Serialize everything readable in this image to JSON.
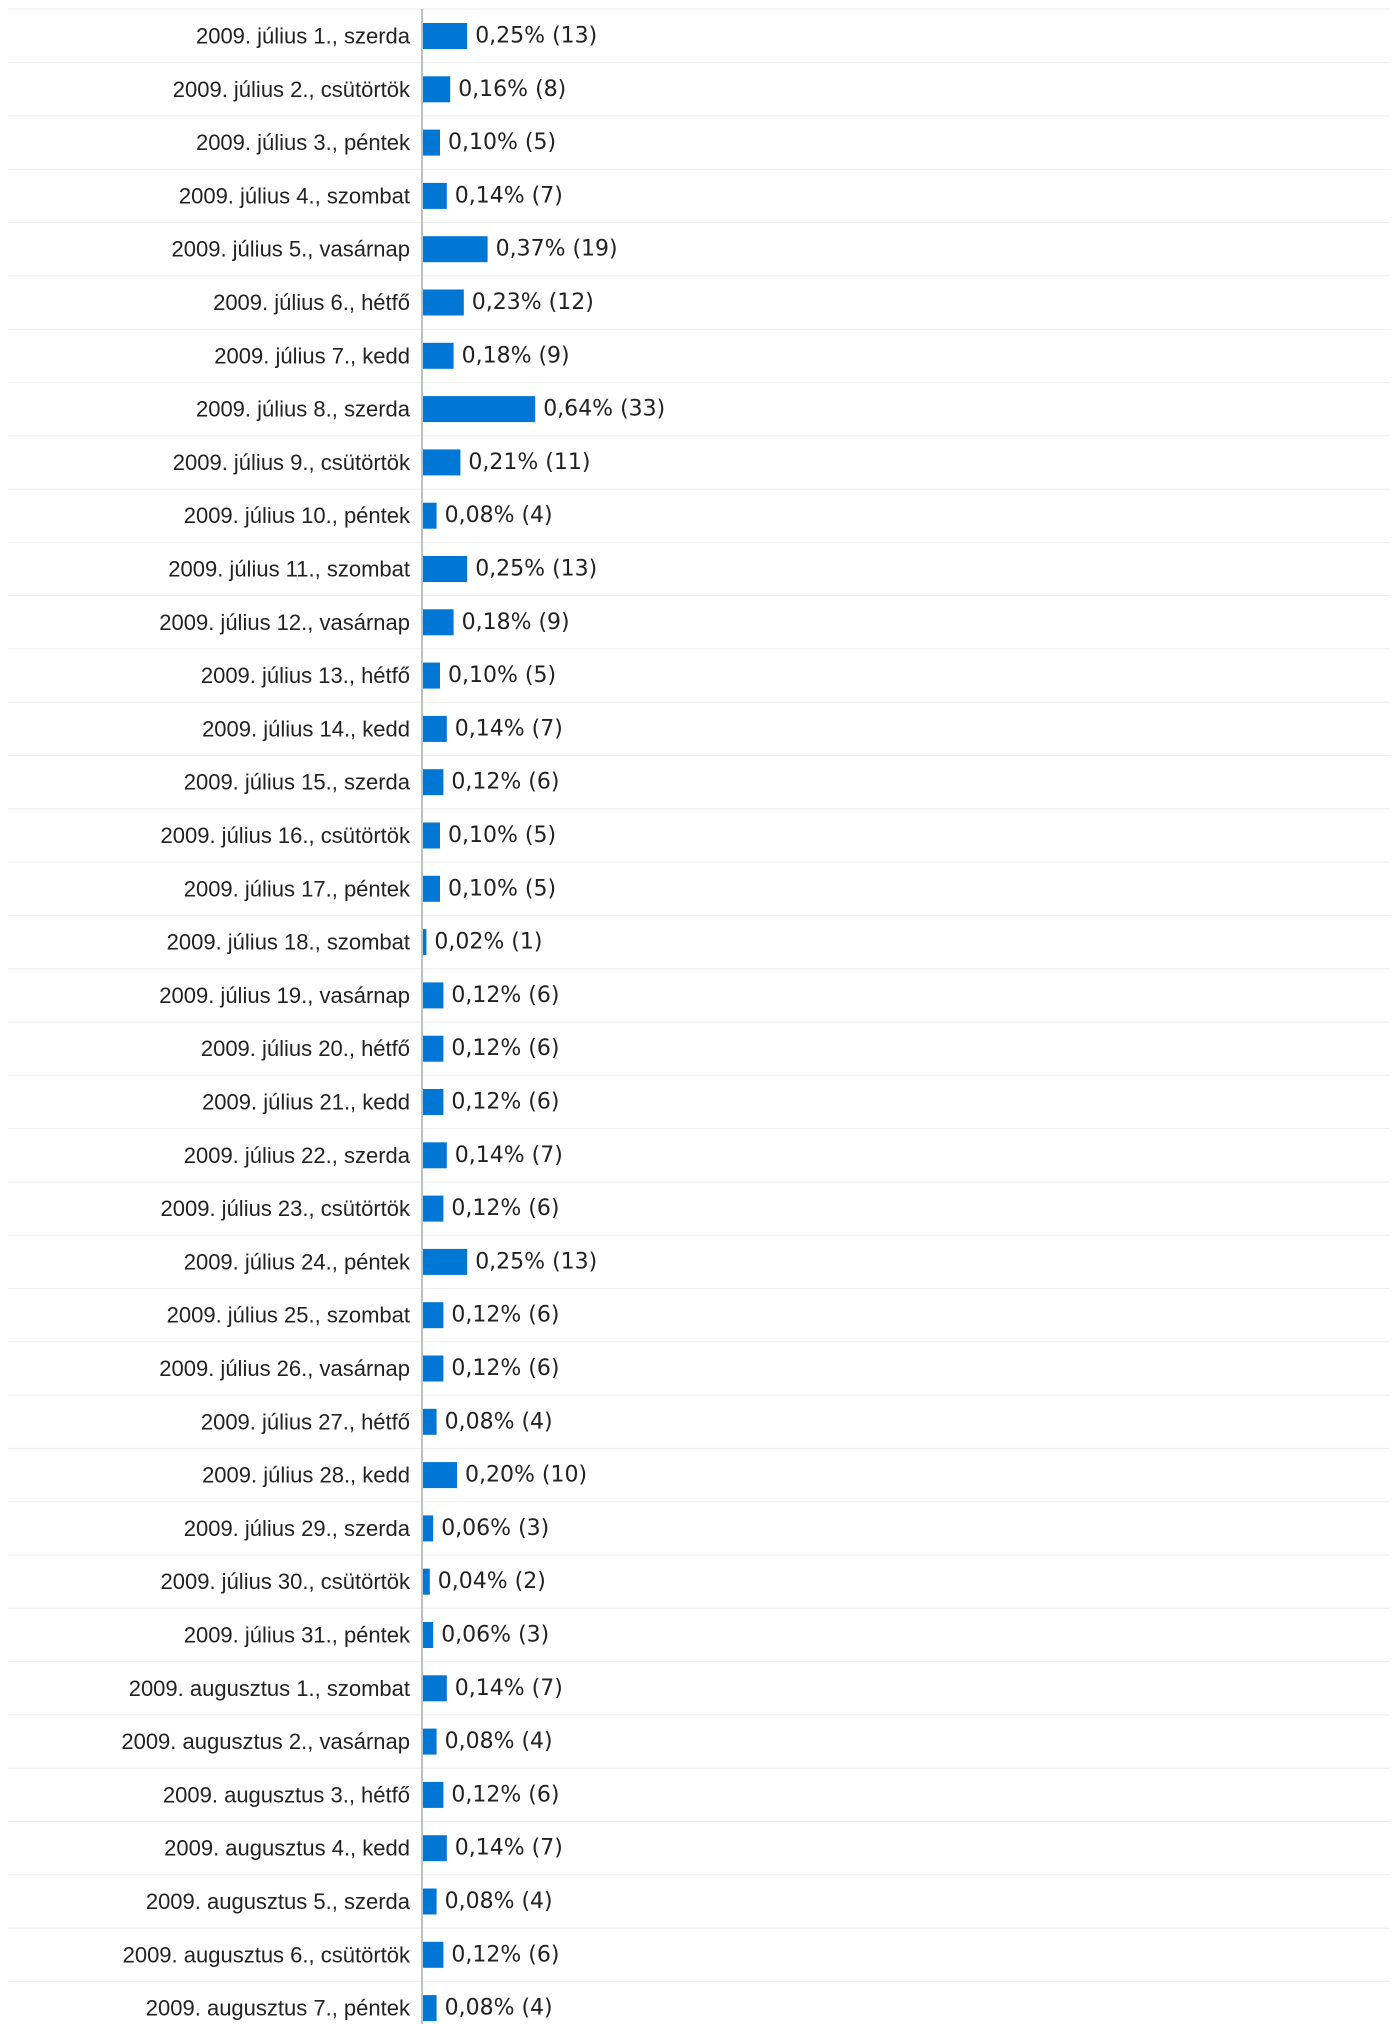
{
  "chart_data": {
    "type": "bar",
    "orientation": "horizontal",
    "bar_color": "#0077d4",
    "grid": false,
    "categories": [
      "2009. július 1., szerda",
      "2009. július 2., csütörtök",
      "2009. július 3., péntek",
      "2009. július 4., szombat",
      "2009. július 5., vasárnap",
      "2009. július 6., hétfő",
      "2009. július 7., kedd",
      "2009. július 8., szerda",
      "2009. július 9., csütörtök",
      "2009. július 10., péntek",
      "2009. július 11., szombat",
      "2009. július 12., vasárnap",
      "2009. július 13., hétfő",
      "2009. július 14., kedd",
      "2009. július 15., szerda",
      "2009. július 16., csütörtök",
      "2009. július 17., péntek",
      "2009. július 18., szombat",
      "2009. július 19., vasárnap",
      "2009. július 20., hétfő",
      "2009. július 21., kedd",
      "2009. július 22., szerda",
      "2009. július 23., csütörtök",
      "2009. július 24., péntek",
      "2009. július 25., szombat",
      "2009. július 26., vasárnap",
      "2009. július 27., hétfő",
      "2009. július 28., kedd",
      "2009. július 29., szerda",
      "2009. július 30., csütörtök",
      "2009. július 31., péntek",
      "2009. augusztus 1., szombat",
      "2009. augusztus 2., vasárnap",
      "2009. augusztus 3., hétfő",
      "2009. augusztus 4., kedd",
      "2009. augusztus 5., szerda",
      "2009. augusztus 6., csütörtök",
      "2009. augusztus 7., péntek"
    ],
    "values": [
      13,
      8,
      5,
      7,
      19,
      12,
      9,
      33,
      11,
      4,
      13,
      9,
      5,
      7,
      6,
      5,
      5,
      1,
      6,
      6,
      6,
      7,
      6,
      13,
      6,
      6,
      4,
      10,
      3,
      2,
      3,
      7,
      4,
      6,
      7,
      4,
      6,
      4
    ],
    "labels": [
      "0,25% (13)",
      "0,16% (8)",
      "0,10% (5)",
      "0,14% (7)",
      "0,37% (19)",
      "0,23% (12)",
      "0,18% (9)",
      "0,64% (33)",
      "0,21% (11)",
      "0,08% (4)",
      "0,25% (13)",
      "0,18% (9)",
      "0,10% (5)",
      "0,14% (7)",
      "0,12% (6)",
      "0,10% (5)",
      "0,10% (5)",
      "0,02% (1)",
      "0,12% (6)",
      "0,12% (6)",
      "0,12% (6)",
      "0,14% (7)",
      "0,12% (6)",
      "0,25% (13)",
      "0,12% (6)",
      "0,12% (6)",
      "0,08% (4)",
      "0,20% (10)",
      "0,06% (3)",
      "0,04% (2)",
      "0,06% (3)",
      "0,14% (7)",
      "0,08% (4)",
      "0,12% (6)",
      "0,14% (7)",
      "0,08% (4)",
      "0,12% (6)",
      "0,08% (4)"
    ]
  }
}
